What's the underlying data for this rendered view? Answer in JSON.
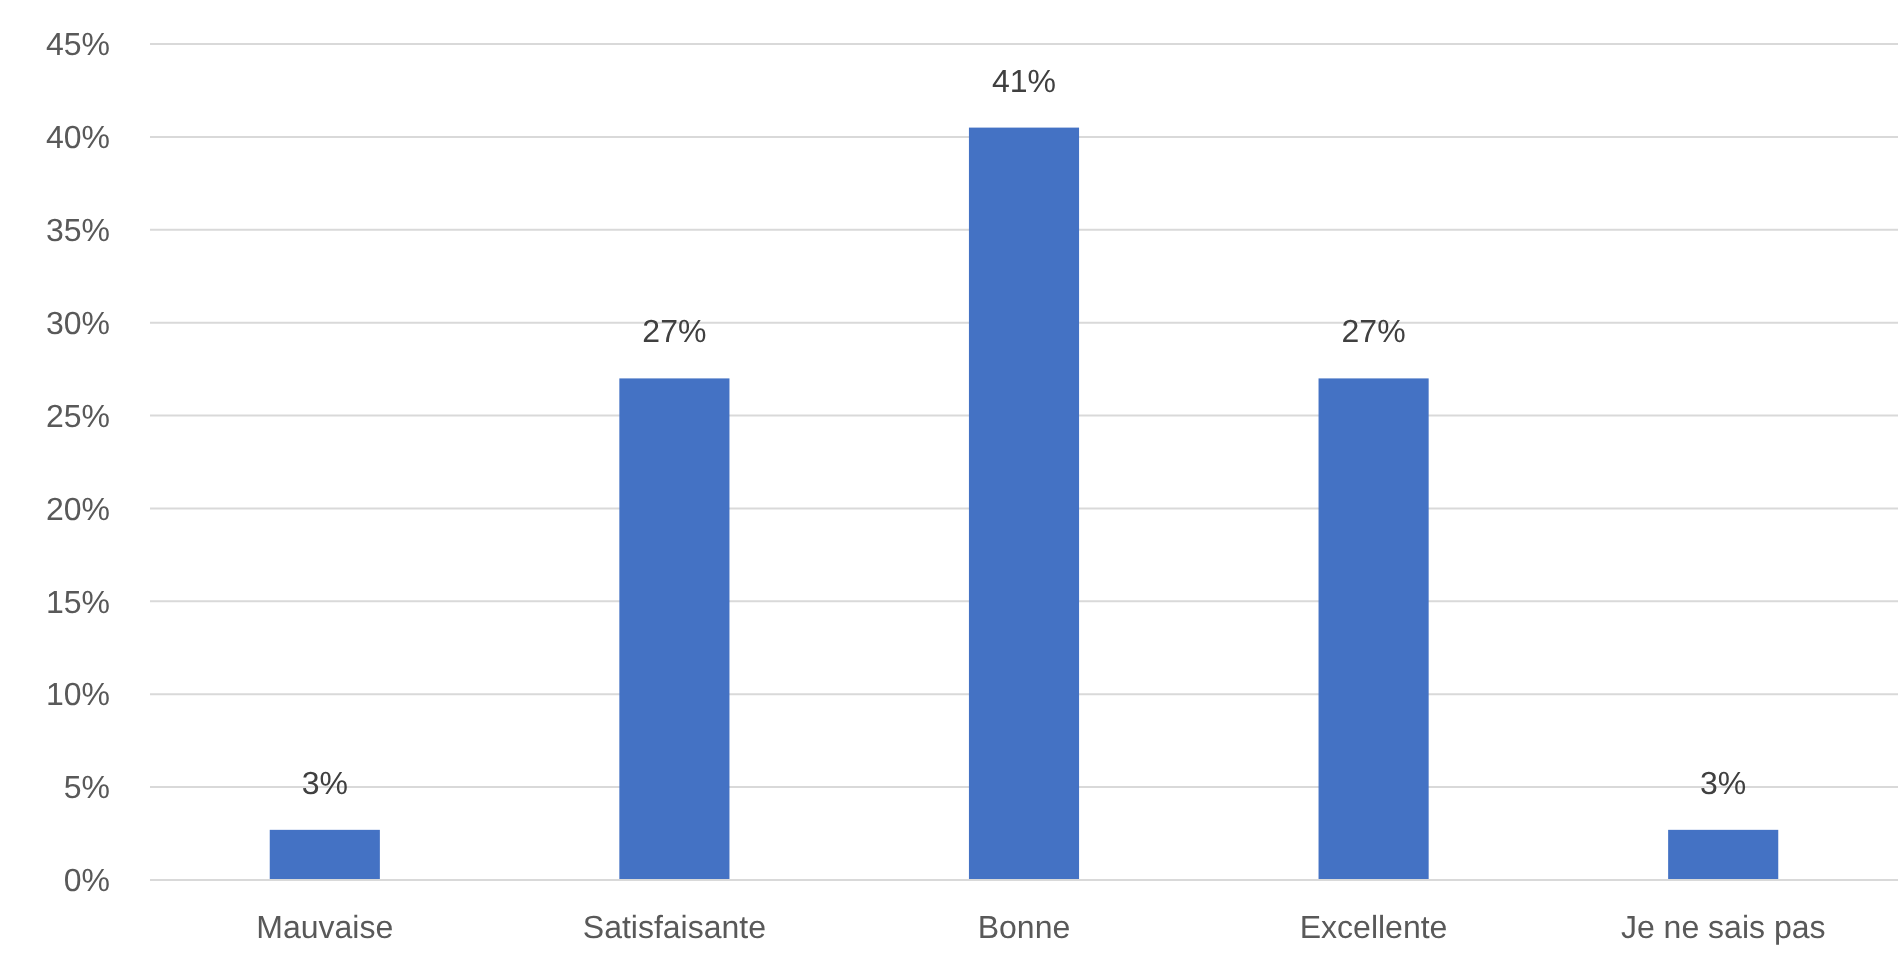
{
  "chart_data": {
    "type": "bar",
    "categories": [
      "Mauvaise",
      "Satisfaisante",
      "Bonne",
      "Excellente",
      "Je ne sais pas"
    ],
    "values": [
      2.7,
      27,
      40.5,
      27,
      2.7
    ],
    "value_labels": [
      "3%",
      "27%",
      "41%",
      "27%",
      "3%"
    ],
    "color": "#4472c4",
    "ylim": [
      0,
      45
    ],
    "yticks": [
      {
        "value": 0,
        "label": "0%"
      },
      {
        "value": 5,
        "label": "5%"
      },
      {
        "value": 10,
        "label": "10%"
      },
      {
        "value": 15,
        "label": "15%"
      },
      {
        "value": 20,
        "label": "20%"
      },
      {
        "value": 25,
        "label": "25%"
      },
      {
        "value": 30,
        "label": "30%"
      },
      {
        "value": 35,
        "label": "35%"
      },
      {
        "value": 40,
        "label": "40%"
      },
      {
        "value": 45,
        "label": "45%"
      }
    ],
    "grid": "y"
  }
}
